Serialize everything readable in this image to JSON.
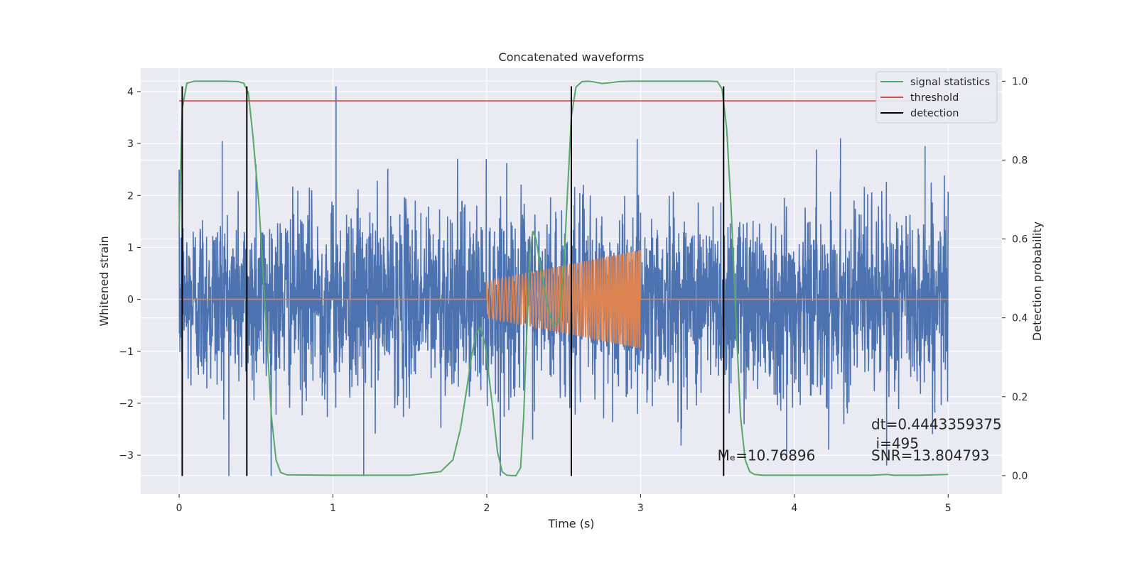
{
  "chart_data": {
    "type": "line",
    "title": "Concatenated waveforms",
    "xlabel": "Time (s)",
    "ylabel_left": "Whitened strain",
    "ylabel_right": "Detection probability",
    "xlim": [
      -0.25,
      5.35
    ],
    "ylim_left": [
      -3.75,
      4.45
    ],
    "ylim_right": [
      -0.047,
      1.033
    ],
    "x_ticks": [
      0,
      1,
      2,
      3,
      4,
      5
    ],
    "y_ticks_left": [
      -3,
      -2,
      -1,
      0,
      1,
      2,
      3,
      4
    ],
    "y_ticks_right": [
      0.0,
      0.2,
      0.4,
      0.6,
      0.8,
      1.0
    ],
    "x_tick_labels": [
      "0",
      "1",
      "2",
      "3",
      "4",
      "5"
    ],
    "y_tick_labels_left": [
      "−3",
      "−2",
      "−1",
      "0",
      "1",
      "2",
      "3",
      "4"
    ],
    "y_tick_labels_right": [
      "0.0",
      "0.2",
      "0.4",
      "0.6",
      "0.8",
      "1.0"
    ],
    "grid": true,
    "background": "#eaeaf2",
    "legend_position": "upper right",
    "legend": [
      {
        "name": "signal statistics",
        "color": "#55a868"
      },
      {
        "name": "threshold",
        "color": "#c44e52"
      },
      {
        "name": "detection",
        "color": "#000000"
      }
    ],
    "series": [
      {
        "role": "whitened strain noise",
        "color": "#4c72b0",
        "x_range": [
          0,
          5
        ],
        "typical_range": [
          -1.4,
          1.4
        ],
        "peak_max": 4.1,
        "peak_min": -3.4
      },
      {
        "role": "injected waveform",
        "color": "#dd8452",
        "segment": [
          2,
          3
        ],
        "amplitude_start": 0.35,
        "amplitude_end": 0.95,
        "baseline": 0
      },
      {
        "name": "signal statistics",
        "color": "#55a868",
        "axis": "right",
        "x": [
          0.0,
          0.02,
          0.05,
          0.1,
          0.2,
          0.3,
          0.38,
          0.42,
          0.45,
          0.48,
          0.52,
          0.56,
          0.6,
          0.63,
          0.66,
          0.7,
          1.0,
          1.5,
          1.7,
          1.78,
          1.83,
          1.87,
          1.9,
          1.93,
          1.96,
          1.99,
          2.03,
          2.07,
          2.1,
          2.13,
          2.16,
          2.19,
          2.22,
          2.24,
          2.26,
          2.28,
          2.3,
          2.32,
          2.35,
          2.39,
          2.43,
          2.47,
          2.5,
          2.52,
          2.55,
          2.58,
          2.62,
          2.66,
          2.7,
          2.75,
          2.8,
          2.86,
          2.95,
          3.2,
          3.45,
          3.5,
          3.53,
          3.56,
          3.59,
          3.62,
          3.65,
          3.68,
          3.71,
          3.74,
          3.8,
          4.5,
          4.6,
          4.65,
          4.8,
          5.0
        ],
        "y": [
          0.62,
          0.93,
          0.995,
          1.0,
          1.0,
          1.0,
          0.999,
          0.995,
          0.97,
          0.86,
          0.68,
          0.42,
          0.15,
          0.04,
          0.008,
          0.002,
          0.001,
          0.001,
          0.01,
          0.04,
          0.12,
          0.22,
          0.3,
          0.36,
          0.375,
          0.33,
          0.2,
          0.06,
          0.01,
          0.001,
          0.0,
          0.0,
          0.02,
          0.15,
          0.36,
          0.56,
          0.62,
          0.6,
          0.53,
          0.44,
          0.38,
          0.39,
          0.52,
          0.68,
          0.91,
          0.985,
          0.999,
          1.0,
          0.998,
          0.994,
          0.996,
          0.999,
          1.0,
          1.0,
          1.0,
          0.999,
          0.98,
          0.88,
          0.67,
          0.4,
          0.15,
          0.04,
          0.01,
          0.003,
          0.001,
          0.001,
          0.003,
          0.001,
          0.001,
          0.003
        ]
      },
      {
        "name": "threshold",
        "color": "#c44e52",
        "axis": "right",
        "x": [
          0,
          5
        ],
        "y": [
          0.95,
          0.95
        ]
      }
    ],
    "detections": [
      0.02,
      0.44,
      2.55,
      3.54
    ],
    "annotations": [
      {
        "text": "dt=0.4443359375",
        "x": 4.5,
        "y": -2.5
      },
      {
        "text": "i=495",
        "x": 4.53,
        "y": -2.87
      },
      {
        "text": "SNR=13.804793",
        "x": 4.5,
        "y": -3.1
      },
      {
        "text": "Mₑ=10.76896",
        "x": 3.5,
        "y": -3.1
      }
    ]
  }
}
